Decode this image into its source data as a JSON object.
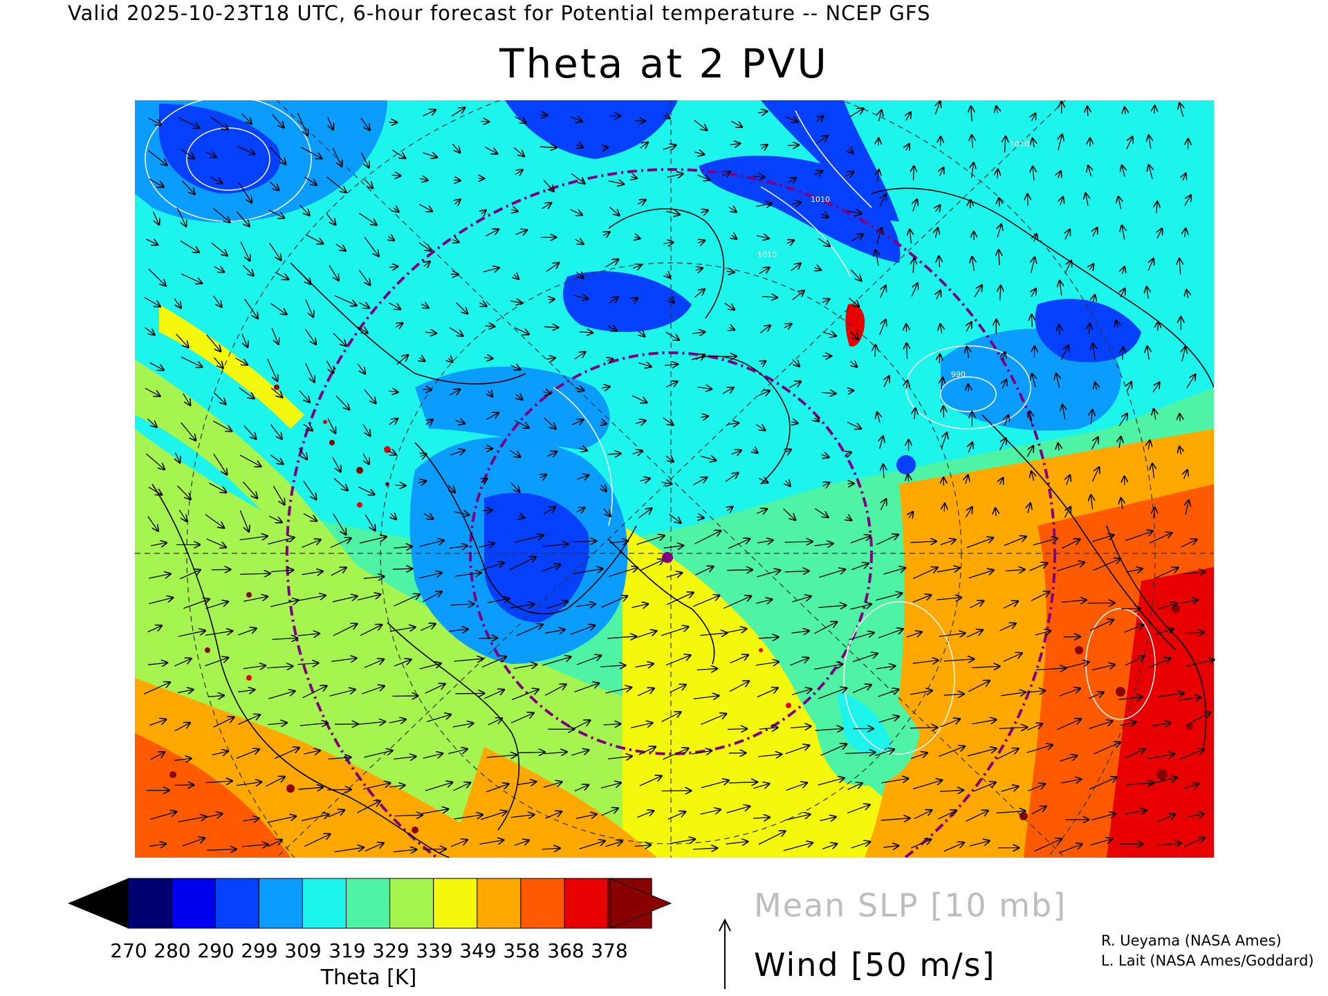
{
  "header": {
    "valid_line": "Valid 2025-10-23T18 UTC, 6-hour forecast for Potential temperature -- NCEP GFS",
    "title": "Theta at 2 PVU"
  },
  "colorbar": {
    "labels": [
      "270",
      "280",
      "290",
      "299",
      "309",
      "319",
      "329",
      "339",
      "349",
      "358",
      "368",
      "378"
    ],
    "units": "Theta [K]",
    "colors": [
      "#000070",
      "#0000f0",
      "#0640ff",
      "#0a9cff",
      "#1cf4ec",
      "#4ef4a4",
      "#a6f450",
      "#f4f80c",
      "#ffa800",
      "#ff5a00",
      "#e80000",
      "#880000"
    ],
    "under_color": "#000000",
    "over_color": "#880000"
  },
  "legend": {
    "slp": "Mean SLP [10 mb]",
    "wind": "Wind [50 m/s]"
  },
  "credits": {
    "line1": "R. Ueyama (NASA Ames)",
    "line2": "L. Lait (NASA Ames/Goddard)"
  },
  "map": {
    "contour_labels": [
      "1010",
      "1010",
      "1010",
      "990"
    ],
    "marker_color": "#800080",
    "range_ring_color": "#800080"
  }
}
